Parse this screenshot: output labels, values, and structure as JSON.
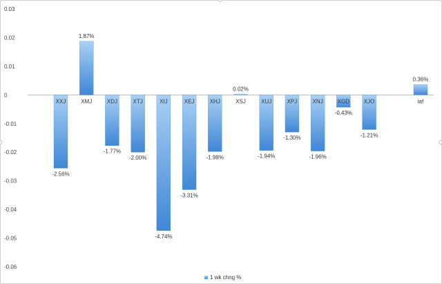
{
  "chart_data": {
    "type": "bar",
    "categories": [
      "XXJ",
      "XMJ",
      "XDJ",
      "XTJ",
      "XIJ",
      "XEJ",
      "XHJ",
      "XSJ",
      "XUJ",
      "XPJ",
      "XNJ",
      "XGD",
      "XJO",
      "",
      "iaf"
    ],
    "series": [
      {
        "name": "1 wk chng %",
        "values": [
          -0.0256,
          0.0187,
          -0.0177,
          -0.02,
          -0.0474,
          -0.0331,
          -0.0198,
          0.0002,
          -0.0194,
          -0.013,
          -0.0196,
          -0.0043,
          -0.0121,
          null,
          0.0036
        ],
        "labels": [
          "-2.56%",
          "1.87%",
          "-1.77%",
          "-2.00%",
          "-4.74%",
          "-3.31%",
          "-1.98%",
          "0.02%",
          "-1.94%",
          "-1.30%",
          "-1.96%",
          "-0.43%",
          "-1.21%",
          "",
          "0.36%"
        ]
      }
    ],
    "ylim": [
      -0.06,
      0.03
    ],
    "yticks": [
      "0.03",
      "0.02",
      "0.01",
      "0",
      "-0.01",
      "-0.02",
      "-0.03",
      "-0.04",
      "-0.05",
      "-0.06"
    ],
    "ytick_values": [
      0.03,
      0.02,
      0.01,
      0,
      -0.01,
      -0.02,
      -0.03,
      -0.04,
      -0.05,
      -0.06
    ],
    "grid": false,
    "legend_position": "bottom",
    "colors": {
      "bar_light": "#a9d0f5",
      "bar_dark": "#3f87d6",
      "axis": "#bbbbbb"
    }
  }
}
